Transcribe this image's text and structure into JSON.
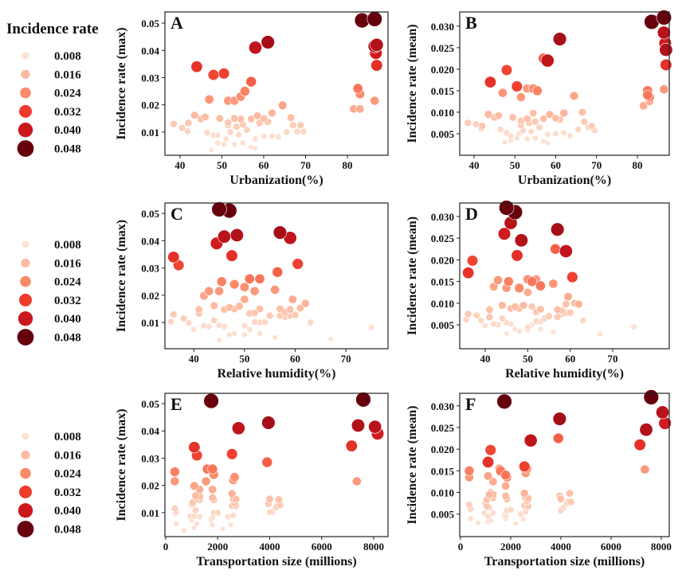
{
  "chart_data": {
    "type": "scatter",
    "legend": {
      "title": "Incidence rate",
      "values": [
        0.008,
        0.016,
        0.024,
        0.032,
        0.04,
        0.048
      ],
      "labels": [
        "0.008",
        "0.016",
        "0.024",
        "0.032",
        "0.040",
        "0.048"
      ],
      "placement": "left",
      "colors": [
        "#fde0d2",
        "#fcbba1",
        "#fc8a6a",
        "#ef3b2c",
        "#cb181d",
        "#67000d"
      ]
    },
    "fields": [
      "urbanization",
      "humidity",
      "transport",
      "max",
      "mean"
    ],
    "regions": [
      [
        86.5,
        45,
        7600,
        0.0515,
        0.032
      ],
      [
        83.5,
        47,
        1750,
        0.051,
        0.031
      ],
      [
        61,
        57,
        3950,
        0.043,
        0.027
      ],
      [
        58,
        59,
        2800,
        0.041,
        0.022
      ],
      [
        87,
        48.5,
        7400,
        0.042,
        0.0245
      ],
      [
        86.5,
        46,
        8050,
        0.0415,
        0.0285
      ],
      [
        86.8,
        44.5,
        8150,
        0.039,
        0.026
      ],
      [
        87,
        47.5,
        7150,
        0.0345,
        0.021
      ],
      [
        44,
        36,
        1100,
        0.034,
        0.017
      ],
      [
        48,
        37,
        1200,
        0.031,
        0.0198
      ],
      [
        50.5,
        60.5,
        2550,
        0.0315,
        0.016
      ],
      [
        57,
        56.5,
        3900,
        0.0285,
        0.0225
      ],
      [
        86.5,
        43,
        7350,
        0.0215,
        0.0153
      ],
      [
        82.5,
        51,
        1600,
        0.026,
        0.015
      ],
      [
        83,
        48,
        1850,
        0.024,
        0.0135
      ],
      [
        55.5,
        45.5,
        350,
        0.025,
        0.015
      ],
      [
        47,
        56,
        2600,
        0.022,
        0.0145
      ],
      [
        51.5,
        45,
        350,
        0.0215,
        0.0135
      ],
      [
        54.5,
        50,
        2650,
        0.023,
        0.0155
      ],
      [
        53,
        52,
        1550,
        0.0215,
        0.0155
      ],
      [
        81.5,
        59.5,
        1800,
        0.0185,
        0.0115
      ],
      [
        83,
        50,
        1300,
        0.0185,
        0.0125
      ],
      [
        64.5,
        42,
        1100,
        0.0198,
        0.0138
      ],
      [
        82.5,
        53,
        1800,
        0.026,
        0.014
      ],
      [
        38.5,
        36,
        1000,
        0.013,
        0.0075
      ],
      [
        40.5,
        38,
        350,
        0.0115,
        0.0072
      ],
      [
        42,
        41,
        1050,
        0.0133,
        0.0068
      ],
      [
        41.8,
        35.5,
        400,
        0.0103,
        0.0062
      ],
      [
        43.5,
        44,
        1150,
        0.0162,
        0.0095
      ],
      [
        45,
        46,
        1300,
        0.0148,
        0.0088
      ],
      [
        46,
        47,
        1800,
        0.0155,
        0.0092
      ],
      [
        46.5,
        39,
        400,
        0.0098,
        0.006
      ],
      [
        48,
        42,
        950,
        0.0088,
        0.0052
      ],
      [
        49.5,
        48,
        2600,
        0.015,
        0.0088
      ],
      [
        49,
        50,
        1100,
        0.0088,
        0.0045
      ],
      [
        51.5,
        52,
        2650,
        0.0135,
        0.008
      ],
      [
        51.5,
        55,
        2550,
        0.0125,
        0.007
      ],
      [
        52,
        53,
        1850,
        0.01,
        0.0058
      ],
      [
        53,
        57,
        4000,
        0.015,
        0.0085
      ],
      [
        53.5,
        58,
        4250,
        0.012,
        0.0075
      ],
      [
        54.5,
        59,
        4350,
        0.0148,
        0.0098
      ],
      [
        55,
        60,
        4400,
        0.0128,
        0.0078
      ],
      [
        56,
        44,
        1150,
        0.0108,
        0.0065
      ],
      [
        57,
        41,
        1850,
        0.0148,
        0.0085
      ],
      [
        58.5,
        49,
        1300,
        0.016,
        0.0095
      ],
      [
        59,
        51,
        3950,
        0.0133,
        0.0092
      ],
      [
        60,
        53,
        2700,
        0.015,
        0.0086
      ],
      [
        61,
        58,
        1050,
        0.0138,
        0.0083
      ],
      [
        62,
        62,
        2550,
        0.017,
        0.0098
      ],
      [
        66.5,
        61,
        1200,
        0.0153,
        0.01
      ],
      [
        67,
        59,
        4300,
        0.0125,
        0.0078
      ],
      [
        68.8,
        57,
        2700,
        0.0125,
        0.0068
      ],
      [
        68,
        54,
        4100,
        0.0102,
        0.0065
      ],
      [
        69.5,
        52,
        4000,
        0.0102,
        0.0058
      ],
      [
        65.5,
        63,
        2000,
        0.01,
        0.006
      ],
      [
        47.5,
        45,
        700,
        0.0035,
        0.003
      ],
      [
        49,
        48,
        1200,
        0.006,
        0.0035
      ],
      [
        50.5,
        47,
        1800,
        0.0055,
        0.004
      ],
      [
        53,
        50,
        2500,
        0.0055,
        0.0038
      ],
      [
        55,
        53,
        400,
        0.006,
        0.004
      ],
      [
        57,
        56,
        1100,
        0.0045,
        0.0033
      ],
      [
        58,
        40,
        1750,
        0.0075,
        0.0048
      ],
      [
        60,
        43,
        2400,
        0.0085,
        0.005
      ],
      [
        62,
        46,
        1300,
        0.0085,
        0.0052
      ],
      [
        63.5,
        75,
        1800,
        0.0082,
        0.0045
      ],
      [
        58,
        67,
        2200,
        0.004,
        0.0028
      ],
      [
        51,
        51,
        1000,
        0.0075,
        0.005
      ],
      [
        54,
        45,
        2600,
        0.009,
        0.0055
      ]
    ],
    "panels": [
      {
        "letter": "A",
        "x": "urbanization",
        "y": "max",
        "xlabel": "Urbanization(%)",
        "ylabel": "Incidence rate (max)",
        "xlim": [
          36.4,
          89.7
        ],
        "ylim": [
          0.0015,
          0.0541
        ],
        "xticks": [
          "40",
          "50",
          "60",
          "70",
          "80"
        ],
        "yticks": [
          "0.01",
          "0.02",
          "0.03",
          "0.04",
          "0.05"
        ]
      },
      {
        "letter": "B",
        "x": "urbanization",
        "y": "mean",
        "xlabel": "Urbanization(%)",
        "ylabel": "Incidence rate (mean)",
        "xlim": [
          36.5,
          87.8
        ],
        "ylim": [
          0.0,
          0.0333
        ],
        "xticks": [
          "40",
          "50",
          "60",
          "70",
          "80"
        ],
        "yticks": [
          "0.005",
          "0.010",
          "0.015",
          "0.020",
          "0.025",
          "0.030"
        ]
      },
      {
        "letter": "C",
        "x": "humidity",
        "y": "max",
        "xlabel": "Relative humidity(%)",
        "ylabel": "Incidence rate (max)",
        "xlim": [
          34.3,
          78.3
        ],
        "ylim": [
          0.0004,
          0.0538
        ],
        "xticks": [
          "40",
          "50",
          "60",
          "70"
        ],
        "yticks": [
          "0.01",
          "0.02",
          "0.03",
          "0.04",
          "0.05"
        ]
      },
      {
        "letter": "D",
        "x": "humidity",
        "y": "mean",
        "xlabel": "Relative humidity(%)",
        "ylabel": "Incidence rate (mean)",
        "xlim": [
          34.0,
          83.3
        ],
        "ylim": [
          -0.0005,
          0.0331
        ],
        "xticks": [
          "40",
          "50",
          "60",
          "70"
        ],
        "yticks": [
          "0.005",
          "0.010",
          "0.015",
          "0.020",
          "0.025",
          "0.030"
        ]
      },
      {
        "letter": "E",
        "x": "transport",
        "y": "max",
        "xlabel": "Transportation size (millions)",
        "ylabel": "Incidence rate (max)",
        "xlim": [
          -30,
          8550
        ],
        "ylim": [
          0.0012,
          0.0538
        ],
        "xticks": [
          "0",
          "2000",
          "4000",
          "6000",
          "8000"
        ],
        "yticks": [
          "0.01",
          "0.02",
          "0.03",
          "0.04",
          "0.05"
        ]
      },
      {
        "letter": "F",
        "x": "transport",
        "y": "mean",
        "xlabel": "Transportation size (millions)",
        "ylabel": "Incidence rate (mean)",
        "xlim": [
          -30,
          8320
        ],
        "ylim": [
          -0.0002,
          0.0329
        ],
        "xticks": [
          "0",
          "2000",
          "4000",
          "6000",
          "8000"
        ],
        "yticks": [
          "0.005",
          "0.010",
          "0.015",
          "0.020",
          "0.025",
          "0.030"
        ]
      }
    ]
  }
}
